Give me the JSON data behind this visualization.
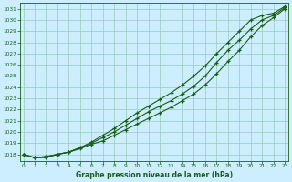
{
  "x": [
    0,
    1,
    2,
    3,
    4,
    5,
    6,
    7,
    8,
    9,
    10,
    11,
    12,
    13,
    14,
    15,
    16,
    17,
    18,
    19,
    20,
    21,
    22,
    23
  ],
  "line1": [
    1018.0,
    1017.7,
    1017.7,
    1018.0,
    1018.2,
    1018.5,
    1018.9,
    1019.2,
    1019.7,
    1020.2,
    1020.7,
    1021.2,
    1021.7,
    1022.2,
    1022.8,
    1023.4,
    1024.2,
    1025.2,
    1026.3,
    1027.3,
    1028.5,
    1029.5,
    1030.2,
    1031.0
  ],
  "line2": [
    1018.0,
    1017.7,
    1017.8,
    1018.0,
    1018.2,
    1018.6,
    1019.0,
    1019.5,
    1020.0,
    1020.6,
    1021.2,
    1021.8,
    1022.3,
    1022.8,
    1023.4,
    1024.1,
    1025.0,
    1026.2,
    1027.3,
    1028.2,
    1029.2,
    1030.0,
    1030.4,
    1031.1
  ],
  "line3": [
    1018.0,
    1017.7,
    1017.8,
    1018.0,
    1018.2,
    1018.6,
    1019.1,
    1019.7,
    1020.3,
    1021.0,
    1021.7,
    1022.3,
    1022.9,
    1023.5,
    1024.2,
    1025.0,
    1025.9,
    1027.0,
    1028.0,
    1029.0,
    1030.0,
    1030.4,
    1030.6,
    1031.2
  ],
  "ylim": [
    1017.4,
    1031.5
  ],
  "xlim": [
    -0.3,
    23.3
  ],
  "yticks": [
    1018,
    1019,
    1020,
    1021,
    1022,
    1023,
    1024,
    1025,
    1026,
    1027,
    1028,
    1029,
    1030,
    1031
  ],
  "xticks": [
    0,
    1,
    2,
    3,
    4,
    5,
    6,
    7,
    8,
    9,
    10,
    11,
    12,
    13,
    14,
    15,
    16,
    17,
    18,
    19,
    20,
    21,
    22,
    23
  ],
  "line_color": "#1a5c1a",
  "bg_color": "#cceeff",
  "grid_color": "#99ccbb",
  "xlabel": "Graphe pression niveau de la mer (hPa)",
  "xlabel_color": "#1a5c1a",
  "tick_color": "#1a5c1a",
  "marker": "+",
  "marker_size": 3.5,
  "lw": 0.8
}
